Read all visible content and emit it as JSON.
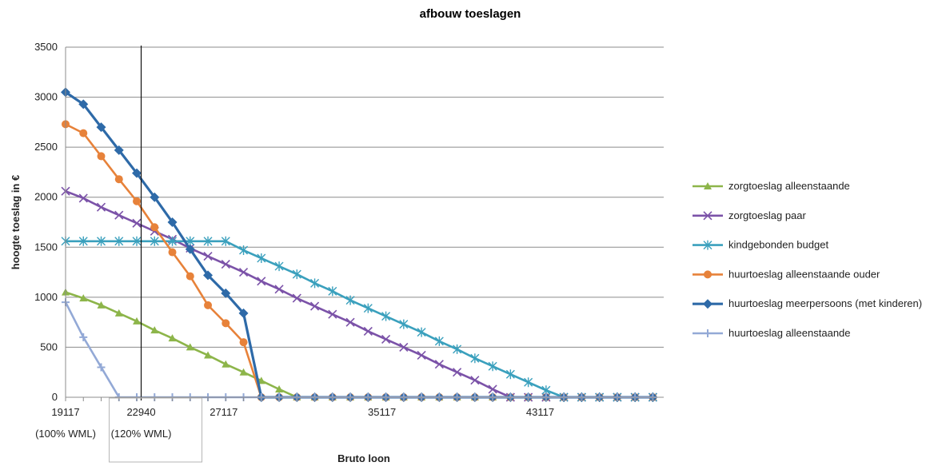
{
  "chart_data": {
    "type": "line",
    "title": "afbouw toeslagen",
    "xlabel": "Bruto loon",
    "ylabel": "hoogte toeslag in €",
    "ylim": [
      0,
      3500
    ],
    "yticks": [
      0,
      500,
      1000,
      1500,
      2000,
      2500,
      3000,
      3500
    ],
    "xlim": [
      19117,
      49367
    ],
    "xtick_labels": [
      {
        "x": 19117,
        "text": "19117"
      },
      {
        "x": 22940,
        "text": "22940"
      },
      {
        "x": 27117,
        "text": "27117"
      },
      {
        "x": 35117,
        "text": "35117"
      },
      {
        "x": 43117,
        "text": "43117"
      }
    ],
    "annotations": [
      {
        "x": 19117,
        "text": "(100% WML)"
      },
      {
        "x": 22940,
        "text": "(120% WML)"
      }
    ],
    "vertical_line_x": 22940,
    "grid": "horizontal",
    "legend_position": "right",
    "x": [
      19117,
      20017,
      20917,
      21817,
      22717,
      23617,
      24517,
      25417,
      26317,
      27217,
      28117,
      29017,
      29917,
      30817,
      31717,
      32617,
      33517,
      34417,
      35317,
      36217,
      37117,
      38017,
      38917,
      39817,
      40717,
      41617,
      42517,
      43417,
      44317,
      45217,
      46117,
      47017,
      47917,
      48817
    ],
    "series": [
      {
        "name": "zorgtoeslag alleenstaande",
        "color": "#8db54a",
        "marker": "triangle",
        "values": [
          1050,
          990,
          920,
          840,
          760,
          670,
          590,
          500,
          420,
          330,
          250,
          165,
          80,
          0,
          0,
          0,
          0,
          0,
          0,
          0,
          0,
          0,
          0,
          0,
          0,
          0,
          0,
          0,
          0,
          0,
          0,
          0,
          0,
          0
        ]
      },
      {
        "name": "zorgtoeslag paar",
        "color": "#7b52a8",
        "marker": "x",
        "values": [
          2060,
          1990,
          1900,
          1820,
          1740,
          1660,
          1580,
          1490,
          1410,
          1330,
          1250,
          1160,
          1080,
          990,
          910,
          830,
          750,
          660,
          580,
          500,
          420,
          330,
          250,
          170,
          80,
          0,
          0,
          0,
          0,
          0,
          0,
          0,
          0,
          0
        ]
      },
      {
        "name": "kindgebonden budget",
        "color": "#3aa0bd",
        "marker": "star",
        "values": [
          1560,
          1560,
          1560,
          1560,
          1560,
          1560,
          1560,
          1560,
          1560,
          1560,
          1470,
          1390,
          1310,
          1230,
          1140,
          1060,
          970,
          890,
          810,
          730,
          650,
          560,
          480,
          390,
          310,
          230,
          150,
          70,
          0,
          0,
          0,
          0,
          0,
          0
        ]
      },
      {
        "name": "huurtoeslag alleenstaande ouder",
        "color": "#e7823a",
        "marker": "circle",
        "values": [
          2730,
          2640,
          2410,
          2180,
          1960,
          1700,
          1450,
          1210,
          920,
          740,
          550,
          0,
          0,
          0,
          0,
          0,
          0,
          0,
          0,
          0,
          0,
          0,
          0,
          0,
          0,
          0,
          0,
          0,
          0,
          0,
          0,
          0,
          0,
          0
        ]
      },
      {
        "name": "huurtoeslag meerpersoons (met kinderen)",
        "color": "#2e6aa8",
        "marker": "diamond",
        "values": [
          3050,
          2930,
          2700,
          2470,
          2240,
          2000,
          1750,
          1480,
          1220,
          1040,
          840,
          0,
          0,
          0,
          0,
          0,
          0,
          0,
          0,
          0,
          0,
          0,
          0,
          0,
          0,
          0,
          0,
          0,
          0,
          0,
          0,
          0,
          0,
          0
        ]
      },
      {
        "name": "huurtoeslag alleenstaande",
        "color": "#93a9d6",
        "marker": "plus",
        "values": [
          950,
          600,
          300,
          0,
          0,
          0,
          0,
          0,
          0,
          0,
          0,
          0,
          0,
          0,
          0,
          0,
          0,
          0,
          0,
          0,
          0,
          0,
          0,
          0,
          0,
          0,
          0,
          0,
          0,
          0,
          0,
          0,
          0,
          0
        ]
      }
    ]
  }
}
